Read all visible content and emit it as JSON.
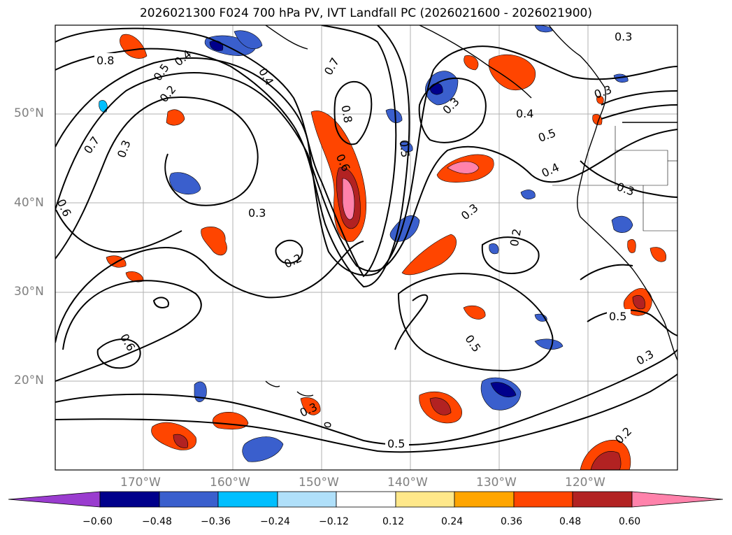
{
  "title": "2026021300 F024 700 hPa PV, IVT Landfall PC (2026021600 - 2026021900)",
  "lat_labels": [
    "50°N",
    "40°N",
    "30°N",
    "20°N"
  ],
  "lon_labels": [
    "170°W",
    "160°W",
    "150°W",
    "140°W",
    "130°W",
    "120°W"
  ],
  "contour_labels": [
    "0.8",
    "0.5",
    "0.4",
    "0.2",
    "0.7",
    "0.3",
    "0.6",
    "0.4",
    "0.7",
    "0.8",
    "0.6",
    "0.5",
    "0.3",
    "0.2",
    "0.3",
    "0.2",
    "0.5",
    "0.3",
    "0.4",
    "0.4",
    "0.5",
    "0.3",
    "0.3",
    "0.6",
    "0.5",
    "0.3",
    "0.2",
    "0.5",
    "0.3",
    "0.3"
  ],
  "colorbar": {
    "ticks": [
      "−0.60",
      "−0.48",
      "−0.36",
      "−0.24",
      "−0.12",
      "0.12",
      "0.24",
      "0.36",
      "0.48",
      "0.60"
    ],
    "colors": [
      "#9a3ccf",
      "#00008b",
      "#3a5fcd",
      "#00bfff",
      "#b0e0fa",
      "#ffffff",
      "#ffe88a",
      "#ffa500",
      "#ff4500",
      "#b22222",
      "#ff82ab"
    ]
  }
}
